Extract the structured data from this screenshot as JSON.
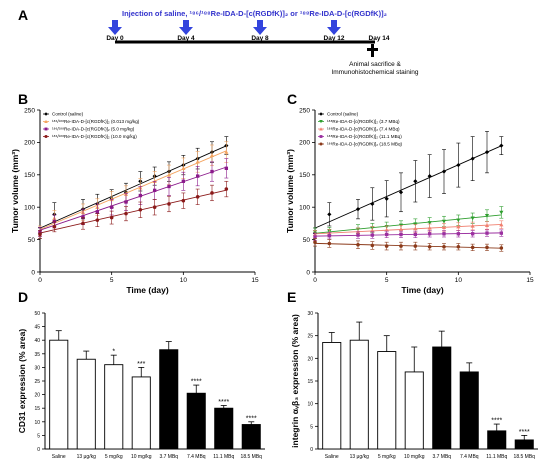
{
  "panels": {
    "a": "A",
    "b": "B",
    "c": "C",
    "d": "D",
    "e": "E"
  },
  "colors": {
    "arrow": "#3344dd",
    "black": "#000000",
    "orange": "#f4a460",
    "purple": "#8b1a8b",
    "darkred": "#8b1a1a",
    "green": "#2e9e2e",
    "salmon": "#f08070",
    "magenta": "#9b30a0",
    "brown": "#8b3a1a"
  },
  "timeline": {
    "title": "Injection of saline, ¹⁸⁶/¹⁸⁸Re-IDA-D-[c(RGDfK)]₂  or ¹⁸⁸Re-IDA-D-[c(RGDfK)]₂",
    "days": [
      "Day 0",
      "Day 4",
      "Day 8",
      "Day 12",
      "Day 14"
    ],
    "note_line1": "Animal sacrifice &",
    "note_line2": "Immunohistochemical staining",
    "arrow_icon": "down-arrow-icon",
    "cross_icon": "cross-icon"
  },
  "chart_data": [
    {
      "id": "B",
      "type": "line",
      "xlabel": "Time (day)",
      "ylabel": "Tumor volume (mm³)",
      "xlim": [
        0,
        15
      ],
      "ylim": [
        0,
        250
      ],
      "xticks": [
        0,
        5,
        10,
        15
      ],
      "yticks": [
        0,
        50,
        100,
        150,
        200,
        250
      ],
      "x": [
        0,
        1,
        3,
        4,
        5,
        6,
        7,
        8,
        9,
        10,
        11,
        12,
        13
      ],
      "series": [
        {
          "name": "Control (saline)",
          "color": "#000000",
          "marker": "diamond",
          "values": [
            60,
            89,
            97,
            105,
            113,
            123,
            140,
            148,
            155,
            165,
            175,
            185,
            195
          ],
          "err": [
            8,
            18,
            15,
            15,
            14,
            14,
            15,
            14,
            15,
            15,
            16,
            16,
            14
          ]
        },
        {
          "name": "¹⁸⁶/¹⁸⁸Re-IDA-D-[c(RGDfK)]₂ (0.013 mg/kg)",
          "color": "#f4a460",
          "marker": "triangle-up",
          "values": [
            63,
            83,
            92,
            100,
            112,
            120,
            130,
            140,
            150,
            160,
            170,
            180,
            185
          ],
          "err": [
            8,
            12,
            13,
            13,
            12,
            13,
            14,
            15,
            15,
            16,
            16,
            16,
            16
          ]
        },
        {
          "name": "¹⁸⁶/¹⁸⁸Re-IDA-D-[c(RGDfK)]₂ (5.0 mg/kg)",
          "color": "#8b1a8b",
          "marker": "square",
          "values": [
            62,
            78,
            85,
            93,
            100,
            108,
            118,
            126,
            132,
            140,
            148,
            155,
            160
          ],
          "err": [
            7,
            10,
            12,
            12,
            12,
            13,
            14,
            14,
            14,
            14,
            15,
            15,
            15
          ]
        },
        {
          "name": "¹⁸⁶/¹⁸⁸Re-IDA-D-[c(RGDfK)]₂ (10.0 mg/kg)",
          "color": "#8b1a1a",
          "marker": "circle",
          "values": [
            58,
            70,
            75,
            80,
            84,
            90,
            96,
            100,
            105,
            110,
            116,
            122,
            128
          ],
          "err": [
            6,
            8,
            9,
            10,
            10,
            11,
            12,
            12,
            12,
            12,
            12,
            12,
            12
          ]
        }
      ]
    },
    {
      "id": "C",
      "type": "line",
      "xlabel": "Time (day)",
      "ylabel": "Tumor volume (mm³)",
      "xlim": [
        0,
        15
      ],
      "ylim": [
        0,
        250
      ],
      "xticks": [
        0,
        5,
        10,
        15
      ],
      "yticks": [
        0,
        50,
        100,
        150,
        200,
        250
      ],
      "x": [
        0,
        1,
        3,
        4,
        5,
        6,
        7,
        8,
        9,
        10,
        11,
        12,
        13
      ],
      "series": [
        {
          "name": "Control (saline)",
          "color": "#000000",
          "marker": "diamond",
          "values": [
            60,
            89,
            97,
            105,
            113,
            123,
            140,
            148,
            155,
            165,
            175,
            185,
            195
          ],
          "err": [
            8,
            18,
            15,
            25,
            28,
            30,
            32,
            33,
            34,
            34,
            34,
            32,
            14
          ]
        },
        {
          "name": "¹⁸⁸Re-IDA-D-[c(RGDfK)]₂ (3.7 MBq)",
          "color": "#2e9e2e",
          "marker": "triangle-down",
          "values": [
            62,
            63,
            66,
            68,
            70,
            72,
            74,
            76,
            78,
            80,
            83,
            87,
            92
          ],
          "err": [
            6,
            6,
            7,
            7,
            7,
            7,
            8,
            8,
            8,
            8,
            8,
            9,
            9
          ]
        },
        {
          "name": "¹⁸⁸Re-IDA-D-[c(RGDfK)]₂ (7.4 MBq)",
          "color": "#f08070",
          "marker": "triangle-up",
          "values": [
            58,
            60,
            62,
            64,
            65,
            66,
            67,
            68,
            69,
            70,
            71,
            72,
            73
          ],
          "err": [
            6,
            6,
            6,
            6,
            6,
            6,
            6,
            6,
            6,
            6,
            6,
            6,
            6
          ]
        },
        {
          "name": "¹⁸⁸Re-IDA-D-[c(RGDfK)]₂ (11.1 MBq)",
          "color": "#9b30a0",
          "marker": "square",
          "values": [
            54,
            56,
            57,
            57,
            58,
            58,
            58,
            59,
            59,
            59,
            59,
            60,
            60
          ],
          "err": [
            5,
            5,
            5,
            5,
            5,
            5,
            5,
            5,
            5,
            5,
            5,
            5,
            5
          ]
        },
        {
          "name": "¹⁸⁸Re-IDA-D-[c(RGDfK)]₂ (18.5 MBq)",
          "color": "#8b3a1a",
          "marker": "circle",
          "values": [
            46,
            44,
            42,
            41,
            40,
            40,
            40,
            39,
            39,
            39,
            38,
            38,
            37
          ],
          "err": [
            6,
            6,
            6,
            6,
            6,
            6,
            6,
            5,
            5,
            5,
            5,
            5,
            5
          ]
        }
      ]
    },
    {
      "id": "D",
      "type": "bar",
      "ylabel": "CD31 expression (% area)",
      "ylim": [
        0,
        50
      ],
      "yticks": [
        0,
        5,
        10,
        15,
        20,
        25,
        30,
        35,
        40,
        45,
        50
      ],
      "categories": [
        "Saline",
        "13 μg/kg",
        "5 mg/kg",
        "10 mg/kg",
        "3.7 MBq",
        "7.4 MBq",
        "11.1 MBq",
        "18.5 MBq"
      ],
      "values": [
        40,
        33,
        31,
        26.5,
        36.5,
        20.5,
        15,
        9
      ],
      "err": [
        3.5,
        3,
        3.5,
        3.5,
        3,
        3,
        1,
        1
      ],
      "filled": [
        false,
        false,
        false,
        false,
        true,
        true,
        true,
        true
      ],
      "sig": [
        "",
        "",
        "*",
        "***",
        "",
        "****",
        "****",
        "****"
      ]
    },
    {
      "id": "E",
      "type": "bar",
      "ylabel": "integrin αᵥβ₃ expression (% area)",
      "ylim": [
        0,
        30
      ],
      "yticks": [
        0,
        5,
        10,
        15,
        20,
        25,
        30
      ],
      "categories": [
        "Saline",
        "13 μg/kg",
        "5 mg/kg",
        "10 mg/kg",
        "3.7 MBq",
        "7.4 MBq",
        "11.1 MBq",
        "18.5 MBq"
      ],
      "values": [
        23.5,
        24,
        21.5,
        17,
        22.5,
        17,
        4,
        2
      ],
      "err": [
        2.2,
        4,
        3.5,
        5.5,
        3.5,
        2,
        1.5,
        1
      ],
      "filled": [
        false,
        false,
        false,
        false,
        true,
        true,
        true,
        true
      ],
      "sig": [
        "",
        "",
        "",
        "",
        "",
        "",
        "****",
        "****"
      ]
    }
  ]
}
